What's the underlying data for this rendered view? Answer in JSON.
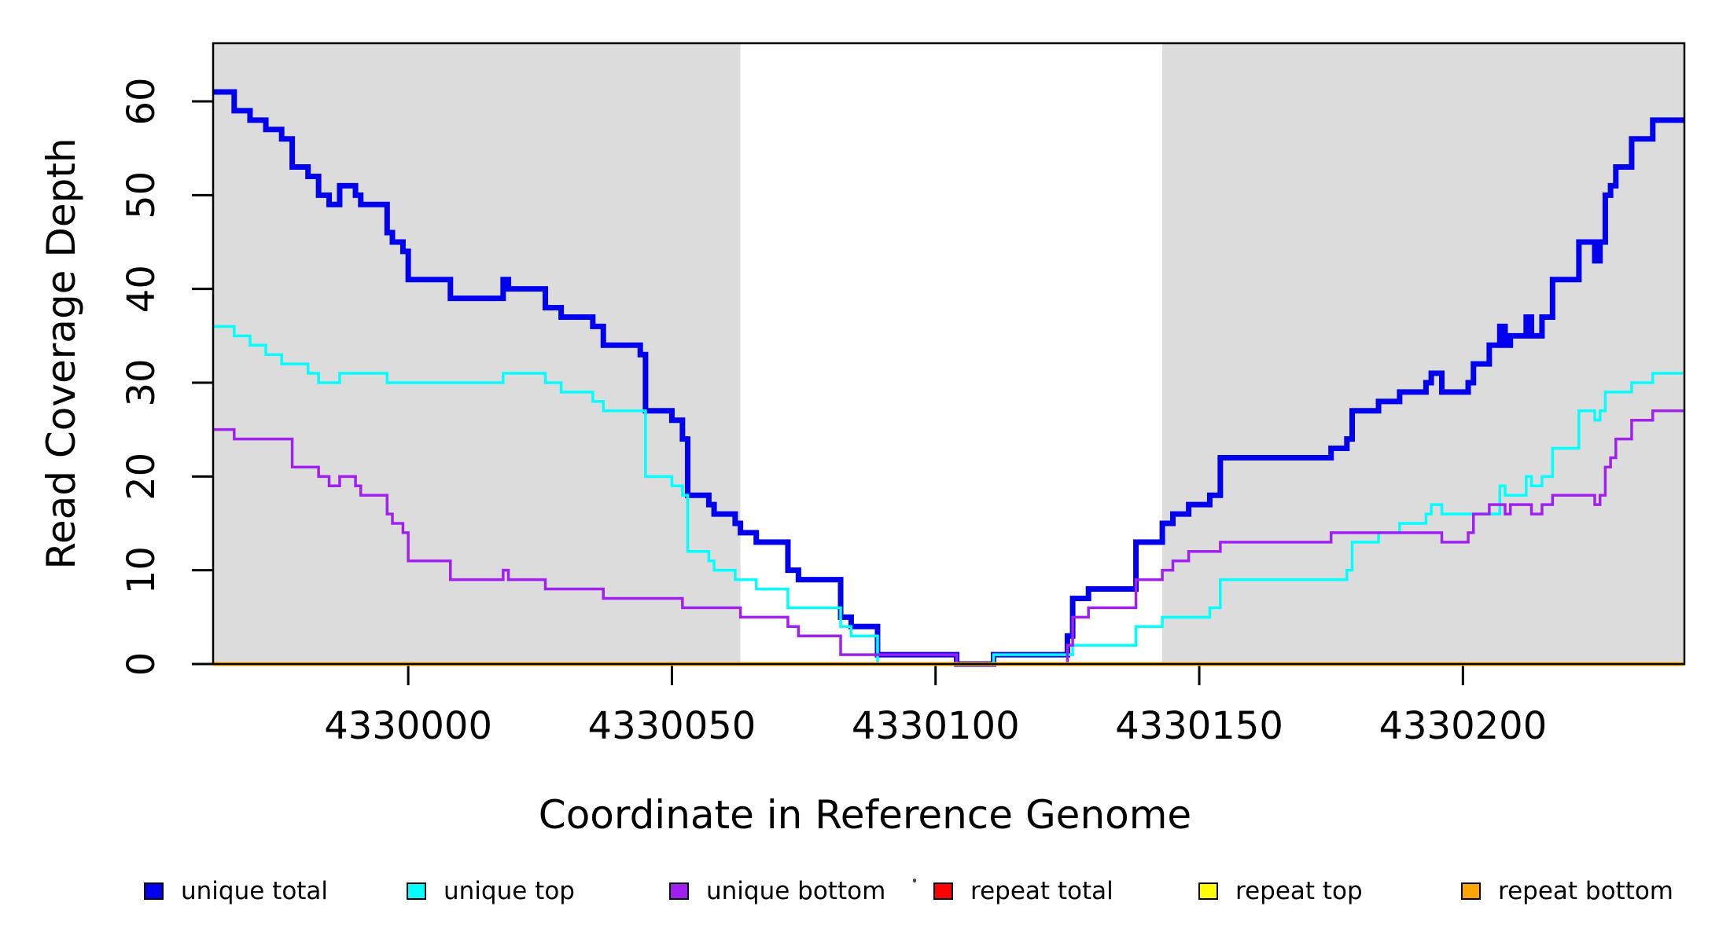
{
  "chart_data": {
    "type": "line",
    "line_style": "step-after",
    "title": "",
    "xlabel": "Coordinate in Reference Genome",
    "ylabel": "Read Coverage Depth",
    "xlim": [
      4329963,
      4330242
    ],
    "ylim": [
      0,
      66.2
    ],
    "x_ticks": [
      4330000,
      4330050,
      4330100,
      4330150,
      4330200
    ],
    "y_ticks": [
      0,
      10,
      20,
      30,
      40,
      50,
      60
    ],
    "grid": false,
    "legend_position": "bottom",
    "background_color": "#ffffff",
    "shaded_region_color": "#dcdcdc",
    "shaded_regions": [
      {
        "x0": 4329963,
        "x1": 4330063
      },
      {
        "x0": 4330143,
        "x1": 4330242
      }
    ],
    "series": [
      {
        "name": "unique total",
        "color": "#0000ee",
        "width": 7,
        "points": [
          [
            4329963,
            61
          ],
          [
            4329967,
            59
          ],
          [
            4329970,
            58
          ],
          [
            4329973,
            57
          ],
          [
            4329976,
            56
          ],
          [
            4329978,
            53
          ],
          [
            4329981,
            52
          ],
          [
            4329983,
            50
          ],
          [
            4329985,
            49
          ],
          [
            4329987,
            51
          ],
          [
            4329990,
            50
          ],
          [
            4329991,
            49
          ],
          [
            4329996,
            46
          ],
          [
            4329997,
            45
          ],
          [
            4329999,
            44
          ],
          [
            4330000,
            41
          ],
          [
            4330008,
            39
          ],
          [
            4330018,
            41
          ],
          [
            4330019,
            40
          ],
          [
            4330026,
            38
          ],
          [
            4330029,
            37
          ],
          [
            4330035,
            36
          ],
          [
            4330037,
            34
          ],
          [
            4330044,
            33
          ],
          [
            4330045,
            27
          ],
          [
            4330050,
            26
          ],
          [
            4330052,
            24
          ],
          [
            4330053,
            18
          ],
          [
            4330057,
            17
          ],
          [
            4330058,
            16
          ],
          [
            4330062,
            15
          ],
          [
            4330063,
            14
          ],
          [
            4330066,
            13
          ],
          [
            4330072,
            10
          ],
          [
            4330074,
            9
          ],
          [
            4330082,
            5
          ],
          [
            4330084,
            4
          ],
          [
            4330089,
            1
          ],
          [
            4330104,
            0
          ],
          [
            4330111,
            1
          ],
          [
            4330125,
            3
          ],
          [
            4330126,
            7
          ],
          [
            4330129,
            8
          ],
          [
            4330138,
            13
          ],
          [
            4330143,
            15
          ],
          [
            4330145,
            16
          ],
          [
            4330148,
            17
          ],
          [
            4330152,
            18
          ],
          [
            4330154,
            22
          ],
          [
            4330175,
            23
          ],
          [
            4330178,
            24
          ],
          [
            4330179,
            27
          ],
          [
            4330184,
            28
          ],
          [
            4330188,
            29
          ],
          [
            4330193,
            30
          ],
          [
            4330194,
            31
          ],
          [
            4330196,
            29
          ],
          [
            4330201,
            30
          ],
          [
            4330202,
            32
          ],
          [
            4330205,
            34
          ],
          [
            4330207,
            36
          ],
          [
            4330208,
            34
          ],
          [
            4330209,
            35
          ],
          [
            4330212,
            37
          ],
          [
            4330213,
            35
          ],
          [
            4330215,
            37
          ],
          [
            4330217,
            41
          ],
          [
            4330222,
            45
          ],
          [
            4330225,
            43
          ],
          [
            4330226,
            45
          ],
          [
            4330227,
            50
          ],
          [
            4330228,
            51
          ],
          [
            4330229,
            53
          ],
          [
            4330232,
            56
          ],
          [
            4330236,
            58
          ],
          [
            4330242,
            58
          ]
        ]
      },
      {
        "name": "unique top",
        "color": "#00ffff",
        "width": 3.5,
        "points": [
          [
            4329963,
            36
          ],
          [
            4329967,
            35
          ],
          [
            4329970,
            34
          ],
          [
            4329973,
            33
          ],
          [
            4329976,
            32
          ],
          [
            4329981,
            31
          ],
          [
            4329983,
            30
          ],
          [
            4329987,
            31
          ],
          [
            4329996,
            30
          ],
          [
            4330018,
            31
          ],
          [
            4330026,
            30
          ],
          [
            4330029,
            29
          ],
          [
            4330035,
            28
          ],
          [
            4330037,
            27
          ],
          [
            4330045,
            20
          ],
          [
            4330050,
            19
          ],
          [
            4330052,
            18
          ],
          [
            4330053,
            12
          ],
          [
            4330057,
            11
          ],
          [
            4330058,
            10
          ],
          [
            4330062,
            9
          ],
          [
            4330066,
            8
          ],
          [
            4330072,
            6
          ],
          [
            4330082,
            4
          ],
          [
            4330084,
            3
          ],
          [
            4330089,
            0
          ],
          [
            4330111,
            1
          ],
          [
            4330126,
            2
          ],
          [
            4330138,
            4
          ],
          [
            4330143,
            5
          ],
          [
            4330152,
            6
          ],
          [
            4330154,
            9
          ],
          [
            4330178,
            10
          ],
          [
            4330179,
            13
          ],
          [
            4330184,
            14
          ],
          [
            4330188,
            15
          ],
          [
            4330193,
            16
          ],
          [
            4330194,
            17
          ],
          [
            4330196,
            16
          ],
          [
            4330207,
            19
          ],
          [
            4330208,
            18
          ],
          [
            4330212,
            20
          ],
          [
            4330213,
            19
          ],
          [
            4330215,
            20
          ],
          [
            4330217,
            23
          ],
          [
            4330222,
            27
          ],
          [
            4330225,
            26
          ],
          [
            4330226,
            27
          ],
          [
            4330227,
            29
          ],
          [
            4330232,
            30
          ],
          [
            4330236,
            31
          ],
          [
            4330242,
            31
          ]
        ]
      },
      {
        "name": "unique bottom",
        "color": "#a020f0",
        "width": 3.5,
        "points": [
          [
            4329963,
            25
          ],
          [
            4329967,
            24
          ],
          [
            4329978,
            21
          ],
          [
            4329983,
            20
          ],
          [
            4329985,
            19
          ],
          [
            4329987,
            20
          ],
          [
            4329990,
            19
          ],
          [
            4329991,
            18
          ],
          [
            4329996,
            16
          ],
          [
            4329997,
            15
          ],
          [
            4329999,
            14
          ],
          [
            4330000,
            11
          ],
          [
            4330008,
            9
          ],
          [
            4330018,
            10
          ],
          [
            4330019,
            9
          ],
          [
            4330026,
            8
          ],
          [
            4330037,
            7
          ],
          [
            4330052,
            6
          ],
          [
            4330063,
            5
          ],
          [
            4330072,
            4
          ],
          [
            4330074,
            3
          ],
          [
            4330082,
            1
          ],
          [
            4330104,
            0
          ],
          [
            4330125,
            2
          ],
          [
            4330126,
            5
          ],
          [
            4330129,
            6
          ],
          [
            4330138,
            9
          ],
          [
            4330143,
            10
          ],
          [
            4330145,
            11
          ],
          [
            4330148,
            12
          ],
          [
            4330154,
            13
          ],
          [
            4330175,
            14
          ],
          [
            4330196,
            13
          ],
          [
            4330201,
            14
          ],
          [
            4330202,
            16
          ],
          [
            4330205,
            17
          ],
          [
            4330208,
            16
          ],
          [
            4330209,
            17
          ],
          [
            4330213,
            16
          ],
          [
            4330215,
            17
          ],
          [
            4330217,
            18
          ],
          [
            4330225,
            17
          ],
          [
            4330226,
            18
          ],
          [
            4330227,
            21
          ],
          [
            4330228,
            22
          ],
          [
            4330229,
            24
          ],
          [
            4330232,
            26
          ],
          [
            4330236,
            27
          ],
          [
            4330242,
            27
          ]
        ]
      },
      {
        "name": "repeat total",
        "color": "#ff0000",
        "width": 4,
        "points": [
          [
            4329963,
            0
          ],
          [
            4330242,
            0
          ]
        ]
      },
      {
        "name": "repeat top",
        "color": "#ffff00",
        "width": 4,
        "points": [
          [
            4329963,
            0
          ],
          [
            4330242,
            0
          ]
        ]
      },
      {
        "name": "repeat bottom",
        "color": "#ffa500",
        "width": 5,
        "points": [
          [
            4329963,
            0
          ],
          [
            4330242,
            0
          ]
        ]
      }
    ],
    "legend": [
      {
        "label": "unique total",
        "color": "#0000ee"
      },
      {
        "label": "unique top",
        "color": "#00ffff"
      },
      {
        "label": "unique bottom",
        "color": "#a020f0"
      },
      {
        "label": "repeat total",
        "color": "#ff0000"
      },
      {
        "label": "repeat top",
        "color": "#ffff00"
      },
      {
        "label": "repeat bottom",
        "color": "#ffa500"
      }
    ]
  },
  "figure": {
    "x_axis_label": "Coordinate in Reference Genome",
    "y_axis_label": "Read Coverage Depth"
  }
}
